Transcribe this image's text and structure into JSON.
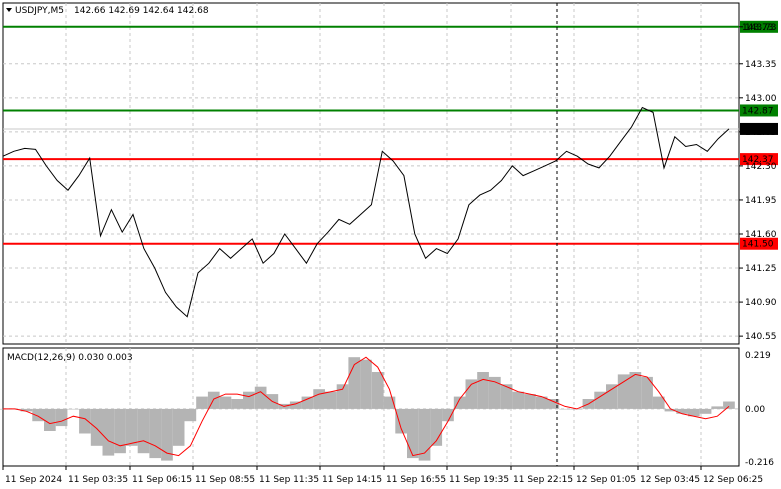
{
  "header": {
    "symbol": "USDJPY,M5",
    "ohlc": "142.66 142.69 142.64 142.68"
  },
  "macd": {
    "label": "MACD(12,26,9) 0.030 0.003",
    "axis_labels": [
      "0.219",
      "0.00",
      "-0.216"
    ]
  },
  "colors": {
    "price_line": "#000000",
    "support_resistance": "#ff0000",
    "target_level": "#008000",
    "signal_line": "#ff0000",
    "histogram": "#b4b4b4",
    "grid": "#c8c8c8",
    "current_price_box": "#000000"
  },
  "chart_data": {
    "type": "line",
    "price_axis_ticks": [
      "143.73",
      "143.35",
      "143.00",
      "142.65",
      "142.30",
      "141.95",
      "141.60",
      "141.25",
      "140.90",
      "140.55"
    ],
    "time_axis_ticks": [
      "11 Sep 2024",
      "11 Sep 03:35",
      "11 Sep 06:15",
      "11 Sep 08:55",
      "11 Sep 11:35",
      "11 Sep 14:15",
      "11 Sep 16:55",
      "11 Sep 19:35",
      "11 Sep 22:15",
      "12 Sep 01:05",
      "12 Sep 03:45",
      "12 Sep 06:25"
    ],
    "ylim": [
      140.5,
      143.8
    ],
    "horizontal_levels": [
      {
        "value": 143.73,
        "label": "143.73",
        "color": "green"
      },
      {
        "value": 142.87,
        "label": "142.87",
        "color": "green"
      },
      {
        "value": 142.37,
        "label": "142.37",
        "color": "red"
      },
      {
        "value": 141.5,
        "label": "141.50",
        "color": "red"
      }
    ],
    "current_price": {
      "value": 142.68,
      "label": "142.68"
    },
    "series": [
      {
        "values": [
          142.4,
          142.45,
          142.48,
          142.47,
          142.3,
          142.15,
          142.05,
          142.2,
          142.38,
          141.58,
          141.85,
          141.62,
          141.8,
          141.45,
          141.25,
          141.0,
          140.85,
          140.75,
          141.2,
          141.3,
          141.45,
          141.35,
          141.45,
          141.55,
          141.3,
          141.4,
          141.6,
          141.45,
          141.3,
          141.5,
          141.62,
          141.75,
          141.7,
          141.8,
          141.9,
          142.45,
          142.35,
          142.2,
          141.6,
          141.35,
          141.45,
          141.4,
          141.55,
          141.9,
          142.0,
          142.05,
          142.15,
          142.3,
          142.2,
          142.25,
          142.3,
          142.35,
          142.45,
          142.4,
          142.32,
          142.28,
          142.4,
          142.55,
          142.7,
          142.9,
          142.85,
          142.28,
          142.6,
          142.5,
          142.52,
          142.45,
          142.58,
          142.68
        ]
      }
    ]
  },
  "macd_data": {
    "ylim": [
      -0.216,
      0.219
    ],
    "histogram": [
      0.0,
      0.0,
      -0.01,
      -0.05,
      -0.09,
      -0.07,
      0.0,
      -0.1,
      -0.15,
      -0.19,
      -0.18,
      -0.15,
      -0.18,
      -0.2,
      -0.21,
      -0.15,
      -0.05,
      0.05,
      0.07,
      0.05,
      0.04,
      0.07,
      0.09,
      0.06,
      0.02,
      0.03,
      0.05,
      0.08,
      0.07,
      0.1,
      0.21,
      0.2,
      0.15,
      0.05,
      -0.1,
      -0.2,
      -0.21,
      -0.15,
      -0.05,
      0.05,
      0.12,
      0.15,
      0.13,
      0.1,
      0.07,
      0.06,
      0.05,
      0.04,
      0.0,
      0.0,
      0.04,
      0.07,
      0.1,
      0.14,
      0.15,
      0.13,
      0.05,
      -0.01,
      -0.02,
      -0.03,
      -0.02,
      0.01,
      0.03
    ],
    "signal": [
      0.0,
      0.0,
      -0.01,
      -0.03,
      -0.06,
      -0.05,
      -0.03,
      -0.04,
      -0.08,
      -0.13,
      -0.15,
      -0.14,
      -0.13,
      -0.15,
      -0.18,
      -0.19,
      -0.15,
      -0.05,
      0.04,
      0.06,
      0.06,
      0.05,
      0.07,
      0.03,
      0.01,
      0.02,
      0.04,
      0.06,
      0.07,
      0.08,
      0.18,
      0.21,
      0.17,
      0.08,
      -0.08,
      -0.19,
      -0.18,
      -0.13,
      -0.05,
      0.04,
      0.1,
      0.12,
      0.11,
      0.09,
      0.07,
      0.06,
      0.05,
      0.03,
      0.01,
      0.0,
      0.02,
      0.05,
      0.08,
      0.11,
      0.14,
      0.13,
      0.07,
      0.0,
      -0.02,
      -0.03,
      -0.04,
      -0.03,
      0.01
    ]
  }
}
